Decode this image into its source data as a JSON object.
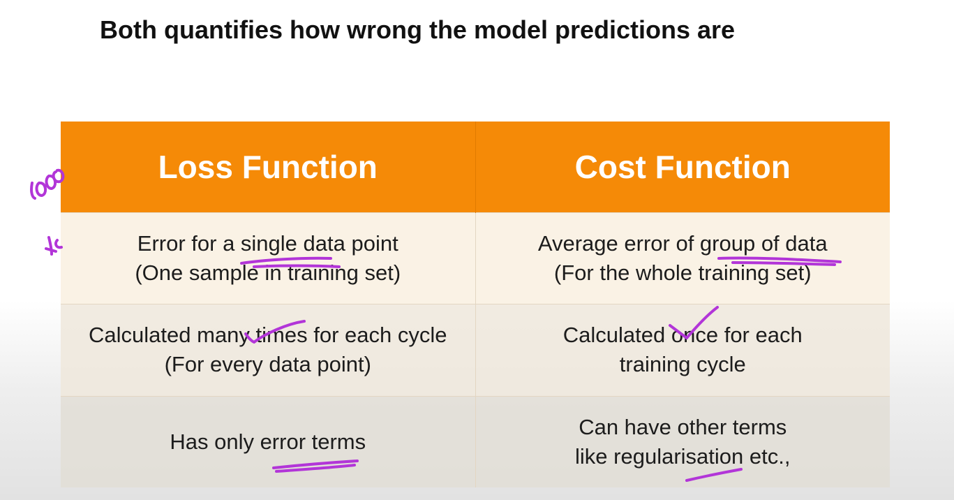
{
  "title": "Both quantifies how wrong the model predictions are",
  "table": {
    "headers": [
      "Loss Function",
      "Cost Function"
    ],
    "rows": [
      {
        "loss": [
          "Error for a single data point",
          "(One sample in training set)"
        ],
        "cost": [
          "Average error of group of data",
          "(For the whole training set)"
        ]
      },
      {
        "loss": [
          "Calculated many times for each cycle",
          "(For every data point)"
        ],
        "cost": [
          "Calculated once for each",
          "training cycle"
        ]
      },
      {
        "loss": [
          "Has only error terms"
        ],
        "cost": [
          "Can have other terms",
          "like regularisation etc.,"
        ]
      }
    ]
  },
  "colors": {
    "header_bg": "#f58a07",
    "header_text": "#ffffff",
    "annotation_ink": "#b235d8"
  },
  "annotations": {
    "handwriting": "loss function annotation",
    "marks": [
      "underline-single-data",
      "check-many-times",
      "underline-group-of-data",
      "check-once",
      "underline-error-terms",
      "underline-regularisation"
    ]
  }
}
